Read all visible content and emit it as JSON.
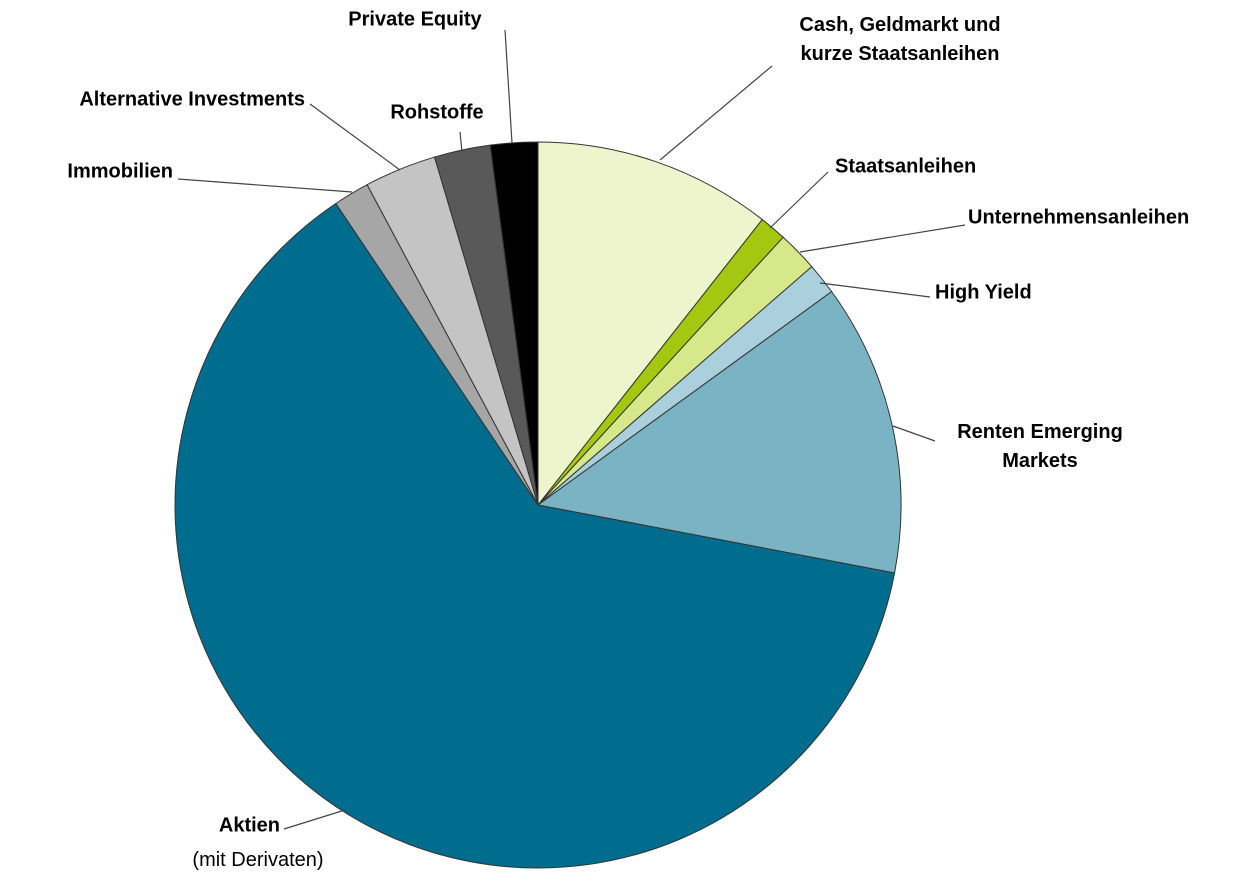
{
  "chart_data": {
    "type": "pie",
    "categories": [
      "Cash, Geldmarkt und\nkurze Staatsanleihen",
      "Staatsanleihen",
      "Unternehmensanleihen",
      "High Yield",
      "Renten Emerging\nMarkets",
      "Aktien",
      "Immobilien",
      "Alternative Investments",
      "Rohstoffe",
      "Private Equity"
    ],
    "values": [
      10.6,
      1.2,
      1.8,
      1.4,
      13,
      62.6,
      1.6,
      3.2,
      2.5,
      2.1
    ],
    "colors": [
      "#eef5cc",
      "#a4c80f",
      "#d6e88a",
      "#a9d0dc",
      "#7ab3c4",
      "#006c8e",
      "#a6a6a6",
      "#c4c4c4",
      "#595959",
      "#000000"
    ],
    "annotation": "(mit Derivaten)"
  }
}
